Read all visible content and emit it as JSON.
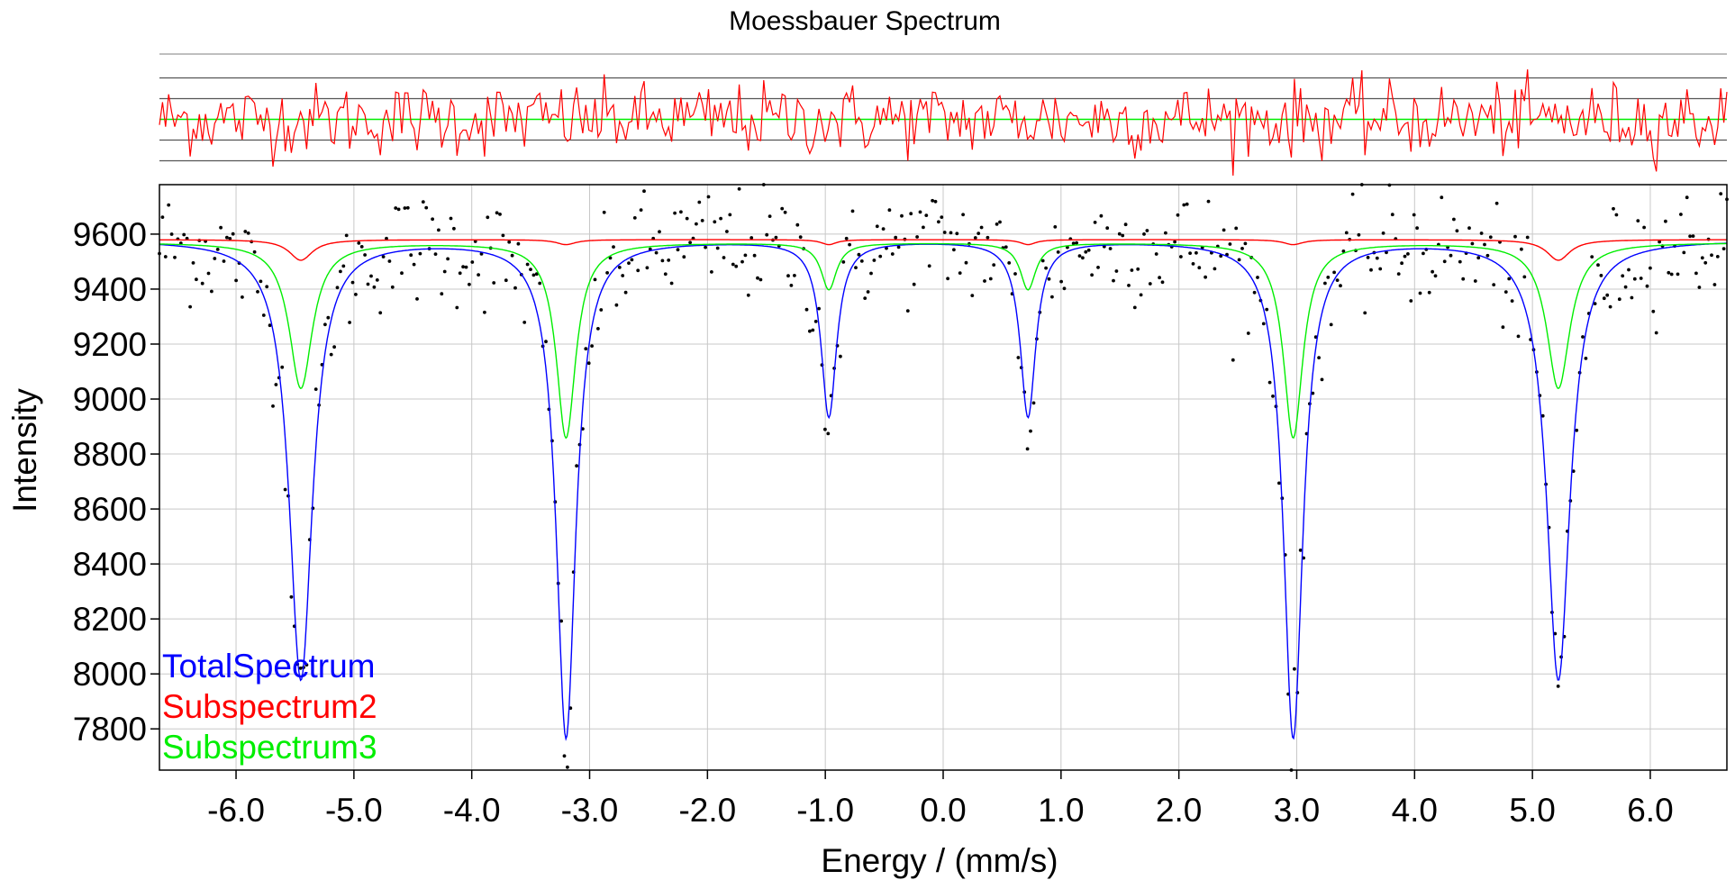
{
  "chart_data": {
    "type": "scatter",
    "title": "Moessbauer Spectrum",
    "xlabel": "Energy / (mm/s)",
    "ylabel": "Intensity",
    "xlim": [
      -6.65,
      6.65
    ],
    "ylim": [
      7650,
      9780
    ],
    "x_ticks": [
      -6,
      -5,
      -4,
      -3,
      -2,
      -1,
      0,
      1,
      2,
      3,
      4,
      5,
      6
    ],
    "x_tick_labels": [
      "-6.0",
      "-5.0",
      "-4.0",
      "-3.0",
      "-2.0",
      "-1.0",
      "0.0",
      "1.0",
      "2.0",
      "3.0",
      "4.0",
      "5.0",
      "6.0"
    ],
    "y_ticks": [
      7800,
      8000,
      8200,
      8400,
      8600,
      8800,
      9000,
      9200,
      9400,
      9600
    ],
    "y_tick_labels": [
      "7800",
      "8000",
      "8200",
      "8400",
      "8600",
      "8800",
      "9000",
      "9200",
      "9400",
      "9600"
    ],
    "grid": true,
    "legend_position": "bottom-left",
    "series": [
      {
        "name": "TotalSpectrum",
        "kind": "line",
        "color": "#0000ff",
        "baseline": 9580,
        "peaks": [
          {
            "x": -5.45,
            "depth": 1600,
            "hwhm": 0.12
          },
          {
            "x": -3.2,
            "depth": 1810,
            "hwhm": 0.1
          },
          {
            "x": -0.97,
            "depth": 640,
            "hwhm": 0.08
          },
          {
            "x": 0.72,
            "depth": 640,
            "hwhm": 0.08
          },
          {
            "x": 2.97,
            "depth": 1810,
            "hwhm": 0.1
          },
          {
            "x": 5.22,
            "depth": 1600,
            "hwhm": 0.12
          }
        ]
      },
      {
        "name": "Subspectrum2",
        "kind": "line",
        "color": "#ff0000",
        "baseline": 9580,
        "peaks": [
          {
            "x": -5.45,
            "depth": 75,
            "hwhm": 0.12
          },
          {
            "x": -3.2,
            "depth": 18,
            "hwhm": 0.1
          },
          {
            "x": -0.97,
            "depth": 18,
            "hwhm": 0.08
          },
          {
            "x": 0.72,
            "depth": 18,
            "hwhm": 0.08
          },
          {
            "x": 2.97,
            "depth": 18,
            "hwhm": 0.1
          },
          {
            "x": 5.22,
            "depth": 75,
            "hwhm": 0.12
          }
        ]
      },
      {
        "name": "Subspectrum3",
        "kind": "line",
        "color": "#00ee00",
        "baseline": 9570,
        "peaks": [
          {
            "x": -5.45,
            "depth": 530,
            "hwhm": 0.12
          },
          {
            "x": -3.2,
            "depth": 710,
            "hwhm": 0.1
          },
          {
            "x": -0.97,
            "depth": 170,
            "hwhm": 0.08
          },
          {
            "x": 0.72,
            "depth": 170,
            "hwhm": 0.08
          },
          {
            "x": 2.97,
            "depth": 710,
            "hwhm": 0.1
          },
          {
            "x": 5.22,
            "depth": 530,
            "hwhm": 0.12
          }
        ]
      },
      {
        "kind": "points",
        "color": "#000000",
        "count": 512,
        "noise_sd": 105
      }
    ],
    "residual_panel": {
      "color": "#ff0000",
      "zero_line_color": "#00ee00",
      "count": 512
    }
  }
}
